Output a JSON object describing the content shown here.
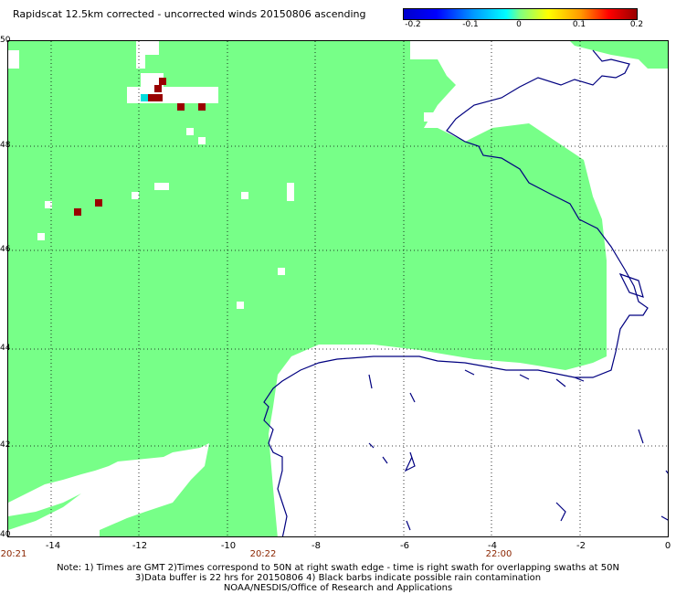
{
  "title": "Rapidscat 12.5km corrected - uncorrected winds 20150806 ascending",
  "colorbar": {
    "labels": [
      "-0.2",
      "-0.1",
      "0",
      "0.1",
      "0.2"
    ],
    "min": -0.2,
    "max": 0.2
  },
  "map": {
    "lon_range": [
      -15,
      0
    ],
    "lat_range": [
      40,
      50
    ],
    "lat_labels": [
      "50",
      "48",
      "46",
      "44",
      "42",
      "40"
    ],
    "lon_labels": [
      "-14",
      "-12",
      "-10",
      "-8",
      "-6",
      "-4",
      "-2",
      "0"
    ],
    "time_labels": [
      "20:21",
      "20:22",
      "22:00"
    ],
    "colors": {
      "swath": "#77ff88",
      "coast": "#000080",
      "high_diff": "#990000",
      "low_diff": "#00dddd",
      "grid": "#000000"
    }
  },
  "notes": {
    "line1": "Note: 1) Times are GMT 2)Times correspond to 50N at right swath edge - time is right swath for overlapping swaths at 50N",
    "line2": "3)Data buffer is 22 hrs for 20150806 4) Black barbs indicate possible rain contamination",
    "line3": "NOAA/NESDIS/Office of Research and Applications"
  }
}
